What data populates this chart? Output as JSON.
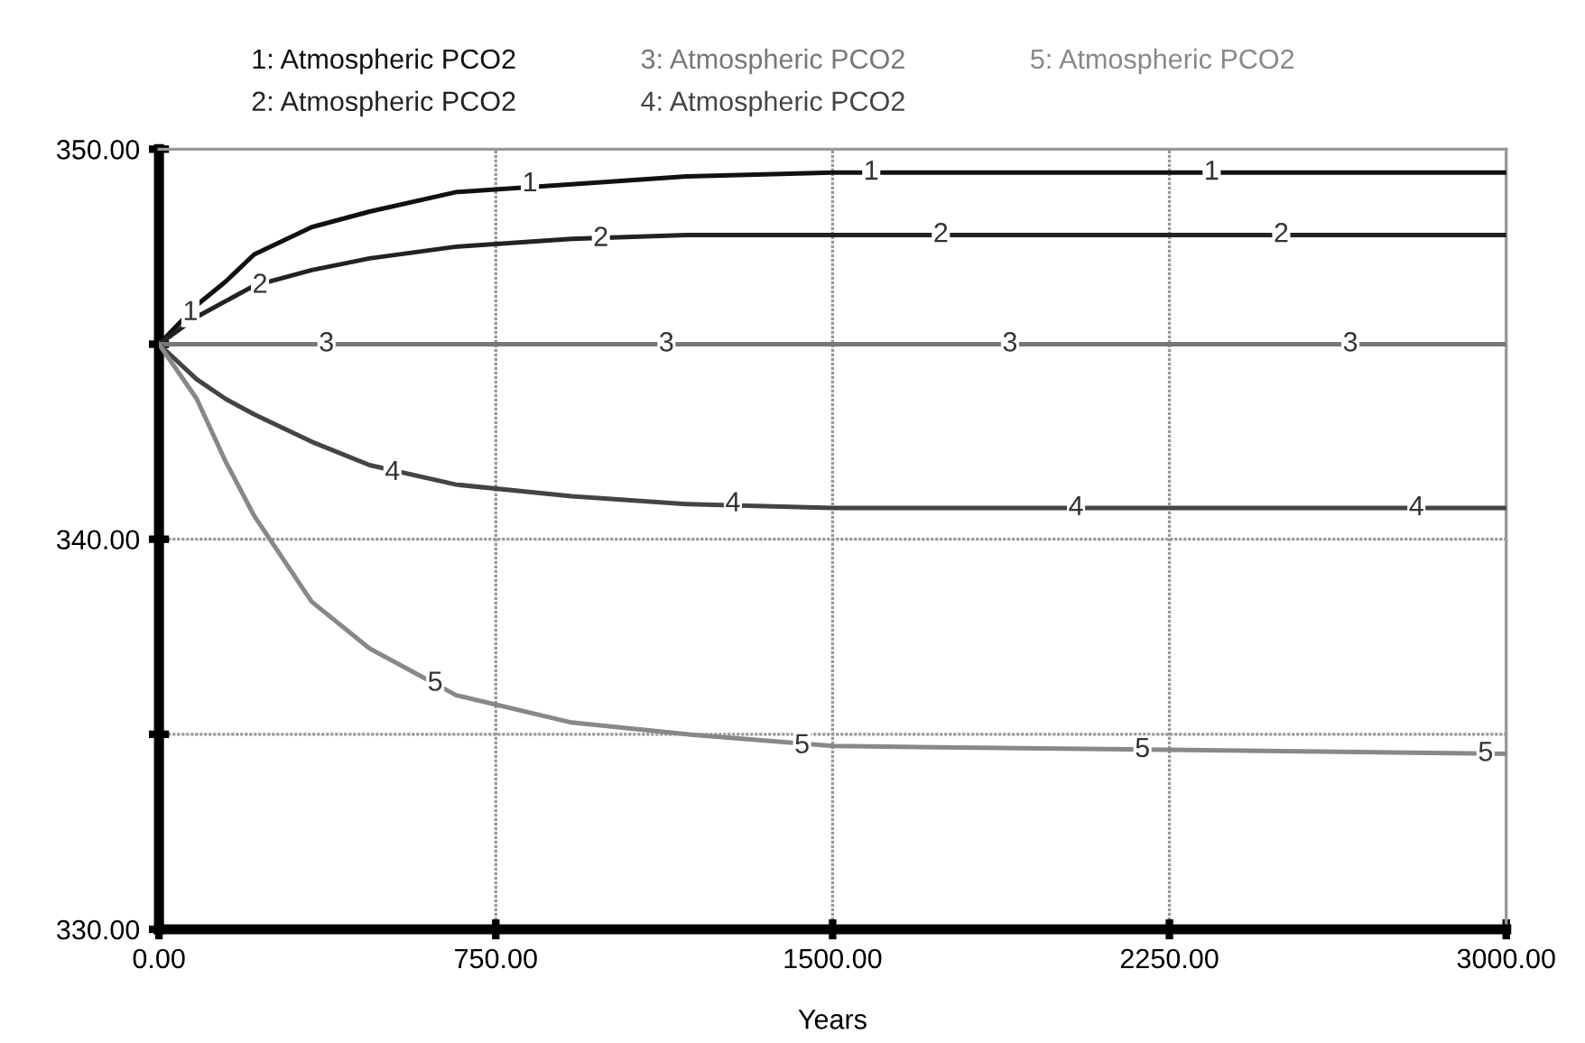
{
  "chart_data": {
    "type": "line",
    "xlabel": "Years",
    "x": [
      0,
      84,
      148,
      212,
      340,
      469,
      662,
      919,
      1175,
      1500,
      2250,
      3000
    ],
    "series": [
      {
        "name": "1: Atmospheric PCO2",
        "color": "#111111",
        "values": [
          345,
          346.0,
          346.6,
          347.3,
          348.0,
          348.4,
          348.9,
          349.1,
          349.3,
          349.4,
          349.4,
          349.4
        ]
      },
      {
        "name": "2: Atmospheric PCO2",
        "color": "#222222",
        "values": [
          345,
          345.7,
          346.1,
          346.5,
          346.9,
          347.2,
          347.5,
          347.7,
          347.8,
          347.8,
          347.8,
          347.8
        ]
      },
      {
        "name": "3: Atmospheric PCO2",
        "color": "#777777",
        "values": [
          345,
          345,
          345,
          345,
          345,
          345,
          345,
          345,
          345,
          345,
          345,
          345
        ]
      },
      {
        "name": "4: Atmospheric PCO2",
        "color": "#444444",
        "values": [
          345,
          344.1,
          343.6,
          343.2,
          342.5,
          341.9,
          341.4,
          341.1,
          340.9,
          340.8,
          340.8,
          340.8
        ]
      },
      {
        "name": "5: Atmospheric PCO2",
        "color": "#888888",
        "values": [
          345,
          343.6,
          342.0,
          340.6,
          338.4,
          337.2,
          336.0,
          335.3,
          335.0,
          334.7,
          334.6,
          334.5
        ]
      }
    ],
    "xlim": [
      0,
      3000
    ],
    "xticks": [
      {
        "value": 0,
        "label": "0.00"
      },
      {
        "value": 750,
        "label": "750.00"
      },
      {
        "value": 1500,
        "label": "1500.00"
      },
      {
        "value": 2250,
        "label": "2250.00"
      },
      {
        "value": 3000,
        "label": "3000.00"
      }
    ],
    "ylim": [
      330,
      350
    ],
    "yticks": [
      {
        "value": 330,
        "label": "330.00"
      },
      {
        "value": 335,
        "label": null
      },
      {
        "value": 340,
        "label": "340.00"
      },
      {
        "value": 345,
        "label": null
      },
      {
        "value": 350,
        "label": "350.00"
      }
    ],
    "grid": true,
    "legend": "top",
    "marker": "none",
    "line_style": "solid",
    "annotations": [
      {
        "text": "1",
        "x": 70,
        "y": 345.8
      },
      {
        "text": "1",
        "x": 826,
        "y": 349.1
      },
      {
        "text": "1",
        "x": 1586,
        "y": 349.4
      },
      {
        "text": "1",
        "x": 2344,
        "y": 349.4
      },
      {
        "text": "2",
        "x": 225,
        "y": 346.5
      },
      {
        "text": "2",
        "x": 984,
        "y": 347.7
      },
      {
        "text": "2",
        "x": 1741,
        "y": 347.8
      },
      {
        "text": "2",
        "x": 2499,
        "y": 347.8
      },
      {
        "text": "3",
        "x": 373,
        "y": 345
      },
      {
        "text": "3",
        "x": 1130,
        "y": 345
      },
      {
        "text": "3",
        "x": 1895,
        "y": 345
      },
      {
        "text": "3",
        "x": 2653,
        "y": 345
      },
      {
        "text": "4",
        "x": 520,
        "y": 341.7
      },
      {
        "text": "4",
        "x": 1278,
        "y": 340.9
      },
      {
        "text": "4",
        "x": 2042,
        "y": 340.8
      },
      {
        "text": "4",
        "x": 2800,
        "y": 340.8
      },
      {
        "text": "5",
        "x": 615,
        "y": 336.3
      },
      {
        "text": "5",
        "x": 1432,
        "y": 334.7
      },
      {
        "text": "5",
        "x": 2190,
        "y": 334.6
      },
      {
        "text": "5",
        "x": 2954,
        "y": 334.5
      }
    ]
  }
}
